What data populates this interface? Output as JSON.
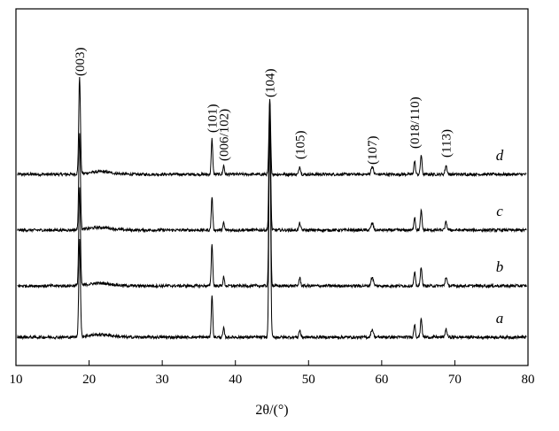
{
  "chart_data": {
    "type": "line",
    "title": "",
    "xlabel": "2θ/(°)",
    "ylabel": "",
    "xlim": [
      10,
      80
    ],
    "xticks": [
      "10",
      "20",
      "30",
      "40",
      "50",
      "60",
      "70",
      "80"
    ],
    "yticks": [],
    "grid": false,
    "legend": "none",
    "line_color": "#000000",
    "peaks": [
      {
        "label": "(003)",
        "x": 18.7
      },
      {
        "label": "(101)",
        "x": 36.8
      },
      {
        "label": "(006/102)",
        "x": 38.4
      },
      {
        "label": "(104)",
        "x": 44.7
      },
      {
        "label": "(105)",
        "x": 48.8
      },
      {
        "label": "(107)",
        "x": 58.7
      },
      {
        "label": "(018/110)",
        "x": 64.5
      },
      {
        "label": "(113)",
        "x": 68.8
      }
    ],
    "series": [
      {
        "name": "d",
        "baseline": 3.0
      },
      {
        "name": "c",
        "baseline": 2.0
      },
      {
        "name": "b",
        "baseline": 1.0
      },
      {
        "name": "a",
        "baseline": 0.0
      }
    ]
  }
}
